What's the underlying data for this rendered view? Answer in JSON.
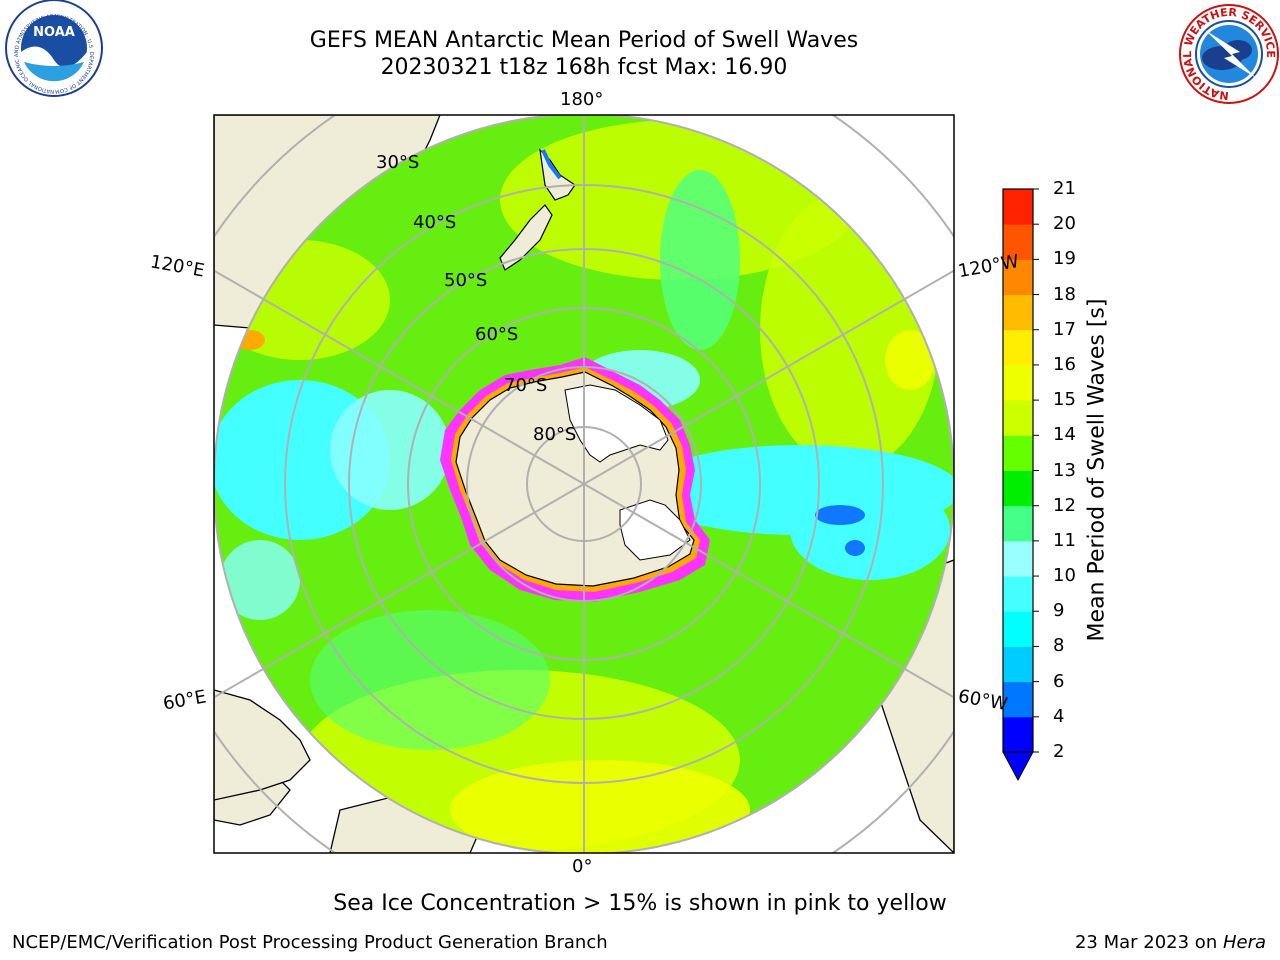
{
  "header": {
    "title_line1": "GEFS MEAN Antarctic Mean Period of Swell Waves",
    "title_line2": "20230321 t18z 168h fcst   Max: 16.90"
  },
  "logos": {
    "noaa_text": "NOAA",
    "noaa_ring": "NATIONAL OCEANIC AND ATMOSPHERIC ADMINISTRATION · U.S. DEPARTMENT OF COMMERCE",
    "nws_ring": "NATIONAL WEATHER SERVICE"
  },
  "map": {
    "longitude_labels": {
      "top": "180°",
      "bottom": "0°",
      "upper_left": "120°E",
      "upper_right": "120°W",
      "lower_left": "60°E",
      "lower_right": "60°W"
    },
    "latitude_labels": [
      "30°S",
      "40°S",
      "50°S",
      "60°S",
      "70°S",
      "80°S"
    ],
    "colors": {
      "land": "#efecd8",
      "ocean_main": "#66ee11",
      "ocean_light_green": "#55ff77",
      "yellow_green": "#ccff00",
      "yellow": "#eeff00",
      "cyan": "#44ffff",
      "light_cyan": "#88ffff",
      "blue": "#1177ff",
      "ice_edge": "#ff33ff",
      "ice_inner": "#ffaa00",
      "gridline": "#b0b0b0"
    }
  },
  "colorbar": {
    "title": "Mean Period of Swell Waves [s]",
    "ticks": [
      "2",
      "4",
      "6",
      "8",
      "9",
      "10",
      "11",
      "12",
      "13",
      "14",
      "15",
      "16",
      "17",
      "18",
      "19",
      "20",
      "21"
    ],
    "bins": [
      "#0000ff",
      "#0077ff",
      "#00ccff",
      "#00ffff",
      "#44ffff",
      "#99ffff",
      "#44ff88",
      "#00ee00",
      "#66ff00",
      "#ccff00",
      "#eeff00",
      "#ffee00",
      "#ffbb00",
      "#ff8800",
      "#ff5500",
      "#ff2200"
    ],
    "extend_color": "#0000ff"
  },
  "caption": "Sea Ice Concentration > 15% is shown in pink to yellow",
  "footer": {
    "left": "NCEP/EMC/Verification Post Processing Product Generation Branch",
    "right_date": "23 Mar 2023 on ",
    "right_host": "Hera"
  }
}
